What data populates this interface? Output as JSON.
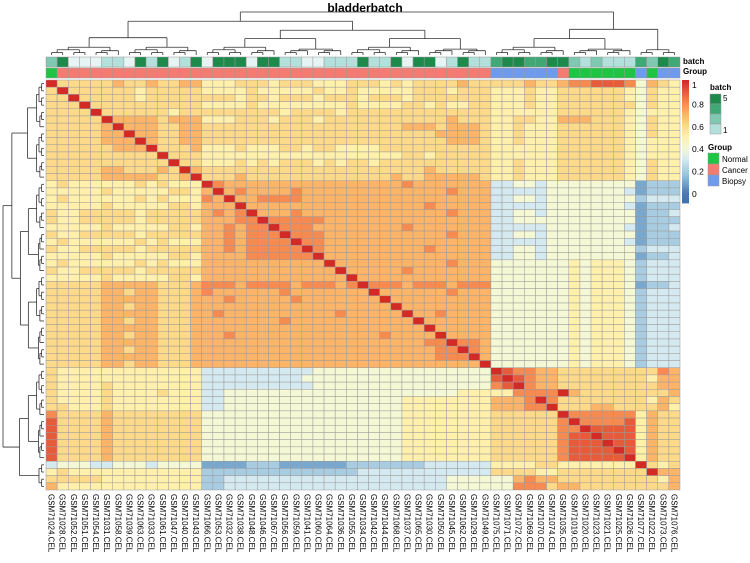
{
  "chart_data": {
    "type": "heatmap",
    "title": "bladderbatch",
    "columns": [
      "GSM71024.CEL",
      "GSM71028.CEL",
      "GSM71052.CEL",
      "GSM71051.CEL",
      "GSM71054.CEL",
      "GSM71031.CEL",
      "GSM71058.CEL",
      "GSM71039.CEL",
      "GSM71063.CEL",
      "GSM71033.CEL",
      "GSM71061.CEL",
      "GSM71047.CEL",
      "GSM71040.CEL",
      "GSM71043.CEL",
      "GSM71066.CEL",
      "GSM71053.CEL",
      "GSM71032.CEL",
      "GSM71038.CEL",
      "GSM71048.CEL",
      "GSM71046.CEL",
      "GSM71067.CEL",
      "GSM71056.CEL",
      "GSM71059.CEL",
      "GSM71041.CEL",
      "GSM71060.CEL",
      "GSM71064.CEL",
      "GSM71036.CEL",
      "GSM71055.CEL",
      "GSM71034.CEL",
      "GSM71042.CEL",
      "GSM71044.CEL",
      "GSM71068.CEL",
      "GSM71037.CEL",
      "GSM71065.CEL",
      "GSM71030.CEL",
      "GSM71050.CEL",
      "GSM71045.CEL",
      "GSM71062.CEL",
      "GSM71029.CEL",
      "GSM71049.CEL",
      "GSM71075.CEL",
      "GSM71071.CEL",
      "GSM71072.CEL",
      "GSM71069.CEL",
      "GSM71070.CEL",
      "GSM71074.CEL",
      "GSM71035.CEL",
      "GSM71019.CEL",
      "GSM71020.CEL",
      "GSM71023.CEL",
      "GSM71021.CEL",
      "GSM71025.CEL",
      "GSM71026.CEL",
      "GSM71077.CEL",
      "GSM71022.CEL",
      "GSM71073.CEL",
      "GSM71076.CEL"
    ],
    "values_tenths": [
      "a666667667667755566656665556665656666766666766788999 84765",
      "6a66666656666655556555556556555556665666555655666666 54655",
      "66a66666566666666566566656665666566666665556556666665 4655",
      "666a666666666655556555555556555566565566555655666666 64655",
      "6666a66666656666666665666656666666666666555555666666 54555",
      "66666a7777677755566656665666666666667666556655777666 54655",
      "666667a777667766666666666666666677767776556555666666 54655",
      "6666677a77667766666666666666666666677776556555666666 54655",
      "66666777a7667766666666666666666666667776556555666666 54555",
      "666666777a666755565556656655556666666666555555666666 54555",
      "6666666666a66655555555555555555566566666555555666666 54555",
      "66666666666a6655565656665656656666666666556555666666 54655",
      "666667766676a766666666666666666666766666556555666666 54655",
      "6666677777667a66676666666666666766777776556555666666 54655",
      "56555555656555a877777777777777778777777733443444444441222",
      "555556555556657a78777787777777777777877733333444444431222",
      "5655555565655587a7788887777777777777777733443444444442333",
      "55555655555665777a777777777777777787777733333444444431222",
      "655666665666667878a77787777777777777877733443444444441223",
      "6556666656666677788a8888877777777777777733444444444441222",
      "55555655555665778788a888777777778777777733333444444431223",
      "655666665666667787888a88877777777777877733443444444441222",
      "5655555565655577878888a8877777777777777733333444444431222",
      "65566666566666778788888a877777777787777733443444444442333",
      "555556555556657777888888a77777777777777733443444444441223",
      "5655555565655577777777777a7777777777877744444445455542333",
      "65566666566666777777777777a777778777777744444445455542333",
      "555556555556657777777777777a77777777777744444445455542333",
      "6666677777666788878888788878a8887888788844444445455541223",
      "66666776776667877777787777777a777777877744444445455542333",
      "666667777766677787777787777777a77777777744444445455542333",
      "6666677677666777777777777777777a7777777744444445455542333",
      "66666777776667787777777777877777a778777744444445455542333",
      "666667767766677777777877777777777a77777744444445455542333",
      "6666677777666777777777777777777777a7777744444445455542333",
      "66666776776667778777777777777787777a777744444445455542333",
      "666667777766677777777777777777777788a88744444445455542333",
      "6666677677666777777777777777777777788a8744444445455542333",
      "66666777776667777777777777777777777888a744444445455542333",
      "666667767766677777777777777777777777777a44444445455542333",
      "6555555555555533333333334444444444444444a9887766666666687",
      "65555555555555333333333444444444444444449a987766666666577",
      "655556555555553333333333444444444444444489a87766666666677",
      "6555565555655533444444444444444444444555558888a76666666676",
      "65555655555555334444444444444444555555557778a866666666576",
      "6655565555555533444444444444444455555555777 88a66677666675",
      "8666676666666644444444444444444455555555666666a8888885766",
      "96666766666666444444444444444444555555556666668a888895766",
      "966667666666664444444444444444445555555566666688a99995766",
      "9666676666666644444444444444444455555555666666899a9995766",
      "96666766666666444444444444444444555555556666668999a995766",
      "966667666666664444444444444444445555555566666689999a95766",
      "9666676666666644444444444444444455555555666666899999a5766",
      "3444334443444411112221111112222222333333555566555555 5a656",
      "5655555555555522222222222222333333333333666655666666 66a77",
      "6666655555555522333333333333333333334444447877666666666 57a8",
      "7555555555555522333333333333333333334444448886776666666678a"
    ],
    "annotations": {
      "batch_label": "batch",
      "group_label": "Group",
      "batch": [
        3,
        5,
        1,
        1,
        1,
        2,
        2,
        1,
        5,
        2,
        5,
        1,
        2,
        5,
        1,
        5,
        5,
        5,
        1,
        5,
        5,
        2,
        2,
        1,
        1,
        2,
        2,
        2,
        5,
        2,
        2,
        5,
        1,
        5,
        5,
        1,
        2,
        5,
        2,
        2,
        4,
        5,
        5,
        4,
        4,
        5,
        5,
        3,
        2,
        3,
        2,
        2,
        2,
        4,
        3,
        5,
        4
      ],
      "group": [
        "Normal",
        "Cancer",
        "Cancer",
        "Cancer",
        "Cancer",
        "Cancer",
        "Cancer",
        "Cancer",
        "Cancer",
        "Cancer",
        "Cancer",
        "Cancer",
        "Cancer",
        "Cancer",
        "Cancer",
        "Cancer",
        "Cancer",
        "Cancer",
        "Cancer",
        "Cancer",
        "Cancer",
        "Cancer",
        "Cancer",
        "Cancer",
        "Cancer",
        "Cancer",
        "Cancer",
        "Cancer",
        "Cancer",
        "Cancer",
        "Cancer",
        "Cancer",
        "Cancer",
        "Cancer",
        "Cancer",
        "Cancer",
        "Cancer",
        "Cancer",
        "Cancer",
        "Cancer",
        "Biopsy",
        "Biopsy",
        "Biopsy",
        "Biopsy",
        "Biopsy",
        "Biopsy",
        "Cancer",
        "Normal",
        "Normal",
        "Normal",
        "Normal",
        "Normal",
        "Normal",
        "Biopsy",
        "Normal",
        "Biopsy",
        "Biopsy"
      ]
    },
    "colorbar": {
      "ticks": [
        "1",
        "0.8",
        "0.6",
        "0.4",
        "0.2",
        "0"
      ],
      "range": [
        -0.1,
        1
      ]
    },
    "legend": {
      "batch_title": "batch",
      "batch_high": "5",
      "batch_low": "1",
      "group_title": "Group",
      "groups": [
        {
          "name": "Normal",
          "color": "#1fc443"
        },
        {
          "name": "Cancer",
          "color": "#f47b72"
        },
        {
          "name": "Biopsy",
          "color": "#6f9bef"
        }
      ]
    },
    "batch_colors": [
      "#e6f4f3",
      "#b4e0dc",
      "#7fc8b2",
      "#3fa874",
      "#1d8a4c"
    ]
  }
}
